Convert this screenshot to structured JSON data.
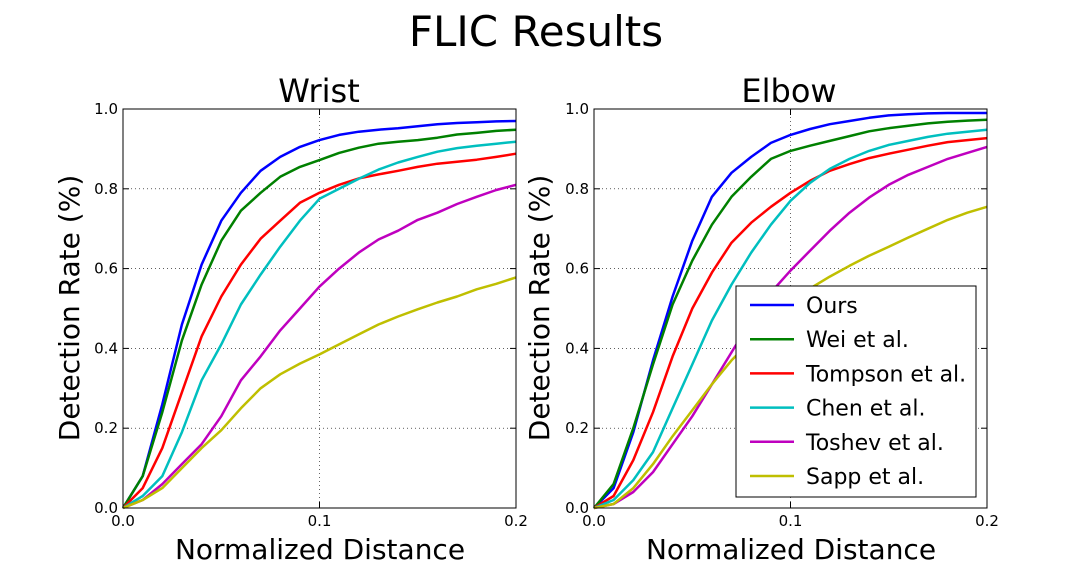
{
  "figure": {
    "title": "FLIC Results"
  },
  "colors": {
    "Ours": "#0000ff",
    "Wei et al.": "#008000",
    "Tompson et al.": "#ff0000",
    "Chen et al.": "#00bfbf",
    "Toshev et al.": "#bf00bf",
    "Sapp et al.": "#bfbf00"
  },
  "chart_data": [
    {
      "type": "line",
      "title": "Wrist",
      "xlabel": "Normalized Distance",
      "ylabel": "Detection Rate (%)",
      "xlim": [
        0,
        0.2
      ],
      "ylim": [
        0,
        1.0
      ],
      "xticks": [
        "0.0",
        "0.1",
        "0.2"
      ],
      "yticks": [
        "0.0",
        "0.2",
        "0.4",
        "0.6",
        "0.8",
        "1.0"
      ],
      "grid": true,
      "legend": null,
      "x": [
        0,
        0.01,
        0.02,
        0.03,
        0.04,
        0.05,
        0.06,
        0.07,
        0.08,
        0.09,
        0.1,
        0.11,
        0.12,
        0.13,
        0.14,
        0.15,
        0.16,
        0.17,
        0.18,
        0.19,
        0.2
      ],
      "series": [
        {
          "name": "Ours",
          "values": [
            0.0,
            0.08,
            0.26,
            0.46,
            0.61,
            0.72,
            0.79,
            0.845,
            0.88,
            0.905,
            0.922,
            0.935,
            0.943,
            0.948,
            0.952,
            0.957,
            0.962,
            0.965,
            0.967,
            0.969,
            0.97
          ]
        },
        {
          "name": "Wei et al.",
          "values": [
            0.0,
            0.08,
            0.24,
            0.42,
            0.56,
            0.67,
            0.745,
            0.79,
            0.83,
            0.855,
            0.872,
            0.89,
            0.903,
            0.913,
            0.918,
            0.922,
            0.928,
            0.936,
            0.94,
            0.945,
            0.948
          ]
        },
        {
          "name": "Tompson et al.",
          "values": [
            0.0,
            0.05,
            0.15,
            0.29,
            0.43,
            0.53,
            0.61,
            0.675,
            0.72,
            0.765,
            0.79,
            0.81,
            0.826,
            0.836,
            0.845,
            0.855,
            0.863,
            0.868,
            0.873,
            0.88,
            0.888
          ]
        },
        {
          "name": "Chen et al.",
          "values": [
            0.0,
            0.03,
            0.08,
            0.19,
            0.32,
            0.41,
            0.51,
            0.585,
            0.655,
            0.72,
            0.775,
            0.8,
            0.825,
            0.848,
            0.866,
            0.88,
            0.893,
            0.902,
            0.908,
            0.913,
            0.918
          ]
        },
        {
          "name": "Toshev et al.",
          "values": [
            0.0,
            0.02,
            0.06,
            0.11,
            0.16,
            0.23,
            0.32,
            0.38,
            0.445,
            0.5,
            0.555,
            0.6,
            0.64,
            0.673,
            0.695,
            0.722,
            0.74,
            0.762,
            0.78,
            0.797,
            0.81
          ]
        },
        {
          "name": "Sapp et al.",
          "values": [
            0.0,
            0.02,
            0.05,
            0.1,
            0.15,
            0.195,
            0.25,
            0.3,
            0.335,
            0.362,
            0.385,
            0.41,
            0.435,
            0.46,
            0.48,
            0.498,
            0.515,
            0.53,
            0.548,
            0.562,
            0.578
          ]
        }
      ]
    },
    {
      "type": "line",
      "title": "Elbow",
      "xlabel": "Normalized Distance",
      "ylabel": "Detection Rate (%)",
      "xlim": [
        0,
        0.2
      ],
      "ylim": [
        0,
        1.0
      ],
      "xticks": [
        "0.0",
        "0.1",
        "0.2"
      ],
      "yticks": [
        "0.0",
        "0.2",
        "0.4",
        "0.6",
        "0.8",
        "1.0"
      ],
      "grid": true,
      "legend": "lower-right",
      "x": [
        0,
        0.01,
        0.02,
        0.03,
        0.04,
        0.05,
        0.06,
        0.07,
        0.08,
        0.09,
        0.1,
        0.11,
        0.12,
        0.13,
        0.14,
        0.15,
        0.16,
        0.17,
        0.18,
        0.19,
        0.2
      ],
      "series": [
        {
          "name": "Ours",
          "values": [
            0.0,
            0.05,
            0.19,
            0.37,
            0.53,
            0.67,
            0.78,
            0.84,
            0.88,
            0.915,
            0.935,
            0.95,
            0.962,
            0.97,
            0.978,
            0.984,
            0.987,
            0.989,
            0.99,
            0.99,
            0.99
          ]
        },
        {
          "name": "Wei et al.",
          "values": [
            0.0,
            0.06,
            0.2,
            0.36,
            0.51,
            0.62,
            0.71,
            0.78,
            0.83,
            0.875,
            0.895,
            0.908,
            0.92,
            0.932,
            0.944,
            0.952,
            0.958,
            0.964,
            0.968,
            0.971,
            0.973
          ]
        },
        {
          "name": "Tompson et al.",
          "values": [
            0.0,
            0.03,
            0.12,
            0.24,
            0.38,
            0.5,
            0.59,
            0.665,
            0.715,
            0.755,
            0.79,
            0.82,
            0.845,
            0.862,
            0.877,
            0.888,
            0.898,
            0.908,
            0.917,
            0.922,
            0.927
          ]
        },
        {
          "name": "Chen et al.",
          "values": [
            0.0,
            0.02,
            0.07,
            0.14,
            0.25,
            0.36,
            0.47,
            0.56,
            0.64,
            0.71,
            0.77,
            0.815,
            0.85,
            0.875,
            0.895,
            0.91,
            0.92,
            0.93,
            0.938,
            0.943,
            0.948
          ]
        },
        {
          "name": "Toshev et al.",
          "values": [
            0.0,
            0.01,
            0.04,
            0.09,
            0.16,
            0.23,
            0.31,
            0.39,
            0.47,
            0.54,
            0.595,
            0.645,
            0.695,
            0.74,
            0.778,
            0.81,
            0.835,
            0.855,
            0.875,
            0.89,
            0.905
          ]
        },
        {
          "name": "Sapp et al.",
          "values": [
            0.0,
            0.01,
            0.05,
            0.11,
            0.18,
            0.245,
            0.31,
            0.37,
            0.42,
            0.465,
            0.51,
            0.55,
            0.58,
            0.607,
            0.632,
            0.655,
            0.678,
            0.7,
            0.722,
            0.74,
            0.755
          ]
        }
      ]
    }
  ]
}
